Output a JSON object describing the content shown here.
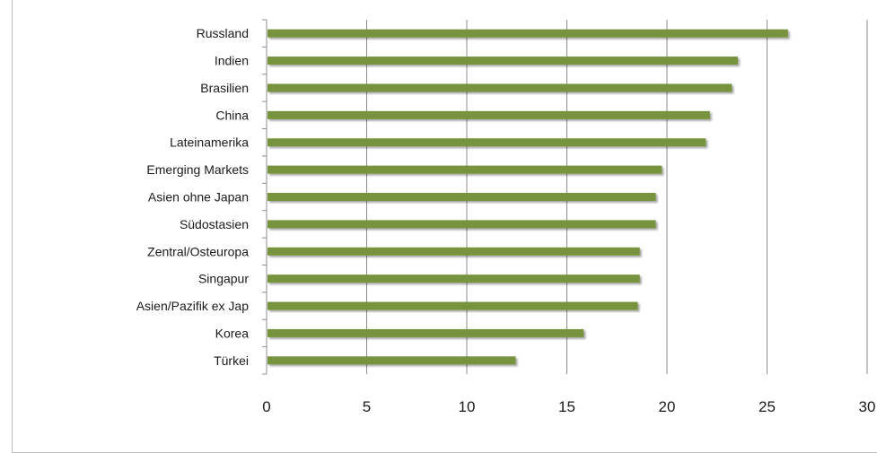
{
  "chart_data": {
    "type": "bar",
    "orientation": "horizontal",
    "categories": [
      "Russland",
      "Indien",
      "Brasilien",
      "China",
      "Lateinamerika",
      "Emerging Markets",
      "Asien ohne Japan",
      "Südostasien",
      "Zentral/Osteuropa",
      "Singapur",
      "Asien/Pazifik ex Jap",
      "Korea",
      "Türkei"
    ],
    "values": [
      26.0,
      23.5,
      23.2,
      22.1,
      21.9,
      19.7,
      19.4,
      19.4,
      18.6,
      18.6,
      18.5,
      15.8,
      12.4
    ],
    "xlim": [
      0,
      30
    ],
    "x_ticks": [
      "0",
      "5",
      "10",
      "15",
      "20",
      "25",
      "30"
    ],
    "grid": true,
    "bar_color": "#77933c",
    "title": "",
    "xlabel": "",
    "ylabel": ""
  }
}
